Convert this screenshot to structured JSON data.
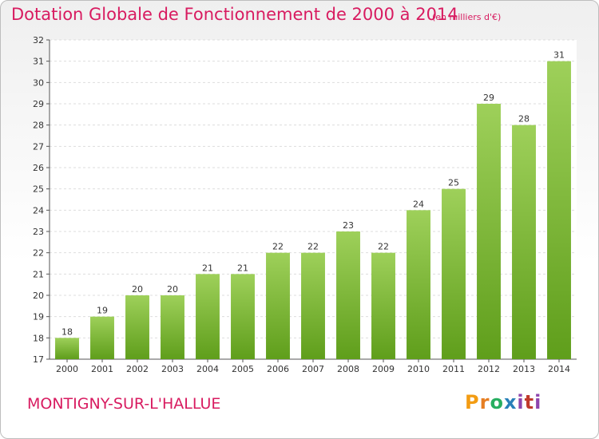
{
  "title": "Dotation Globale de Fonctionnement de 2000 à 2014",
  "unit": "(en milliers d'€)",
  "commune": "MONTIGNY-SUR-L'HALLUE",
  "logo": {
    "text": "Proxiti"
  },
  "colors": {
    "accent": "#d81b60",
    "bar_top": "#9ed05a",
    "bar_bottom": "#5f9e1b",
    "grid": "#dddddd"
  },
  "chart_data": {
    "type": "bar",
    "title": "Dotation Globale de Fonctionnement de 2000 à 2014",
    "subtitle": "(en milliers d'€)",
    "xlabel": "",
    "ylabel": "",
    "categories": [
      "2000",
      "2001",
      "2002",
      "2003",
      "2004",
      "2005",
      "2006",
      "2007",
      "2008",
      "2009",
      "2010",
      "2011",
      "2012",
      "2013",
      "2014"
    ],
    "values": [
      18,
      19,
      20,
      20,
      21,
      21,
      22,
      22,
      23,
      22,
      24,
      25,
      29,
      28,
      31
    ],
    "ylim": [
      17,
      32
    ],
    "yticks": [
      17,
      18,
      19,
      20,
      21,
      22,
      23,
      24,
      25,
      26,
      27,
      28,
      29,
      30,
      31,
      32
    ],
    "grid": true,
    "legend": "none"
  }
}
